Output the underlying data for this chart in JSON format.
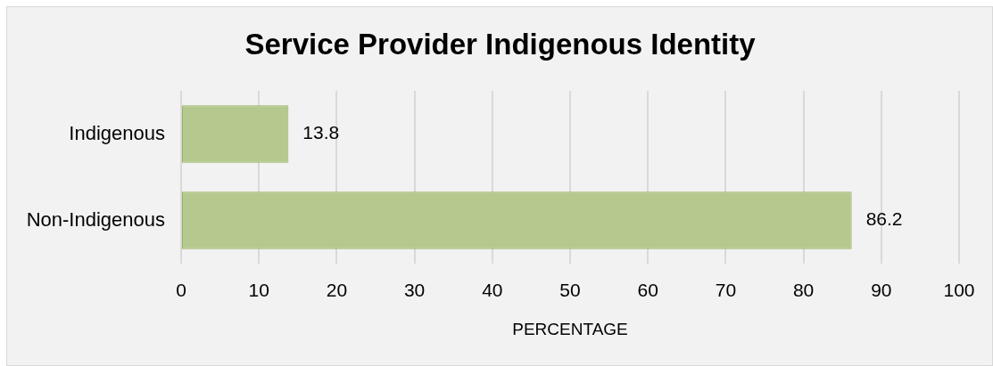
{
  "chart_data": {
    "type": "bar",
    "title": "Service Provider Indigenous Identity",
    "xlabel": "PERCENTAGE",
    "categories": [
      "Indigenous",
      "Non-Indigenous"
    ],
    "values": [
      13.8,
      86.2
    ],
    "color": "#b5c98f",
    "orientation": "horizontal",
    "xlim": [
      0,
      100
    ],
    "xticks": [
      0,
      10,
      20,
      30,
      40,
      50,
      60,
      70,
      80,
      90,
      100
    ],
    "grid": "x",
    "data_labels": true
  }
}
